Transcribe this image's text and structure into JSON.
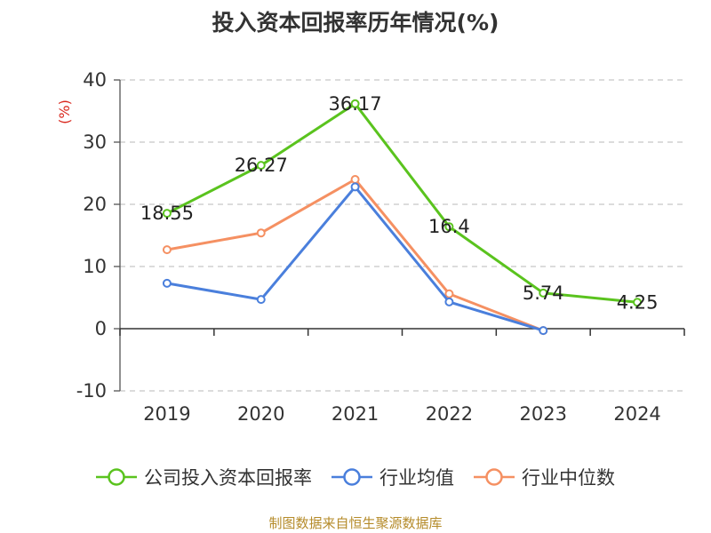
{
  "title": "投入资本回报率历年情况(%)",
  "source": "制图数据来自恒生聚源数据库",
  "chart_data": {
    "type": "line",
    "title": "投入资本回报率历年情况(%)",
    "ylabel": "(%)",
    "categories": [
      "2019",
      "2020",
      "2021",
      "2022",
      "2023",
      "2024"
    ],
    "ylim": [
      -10,
      40
    ],
    "yticks": [
      "40",
      "30",
      "20",
      "10",
      "0",
      "-10"
    ],
    "grid": true,
    "legend_position": "bottom",
    "series": [
      {
        "name": "公司投入资本回报率",
        "color": "#5ac31e",
        "values": [
          18.55,
          26.27,
          36.17,
          16.4,
          5.74,
          4.25
        ],
        "labels": [
          "18.55",
          "26.27",
          "36.17",
          "16.4",
          "5.74",
          "4.25"
        ]
      },
      {
        "name": "行业均值",
        "color": "#4a7fdc",
        "values": [
          7.3,
          4.7,
          22.8,
          4.3,
          -0.3,
          null
        ]
      },
      {
        "name": "行业中位数",
        "color": "#f59062",
        "values": [
          12.7,
          15.4,
          24.0,
          5.6,
          -0.3,
          null
        ]
      }
    ]
  }
}
